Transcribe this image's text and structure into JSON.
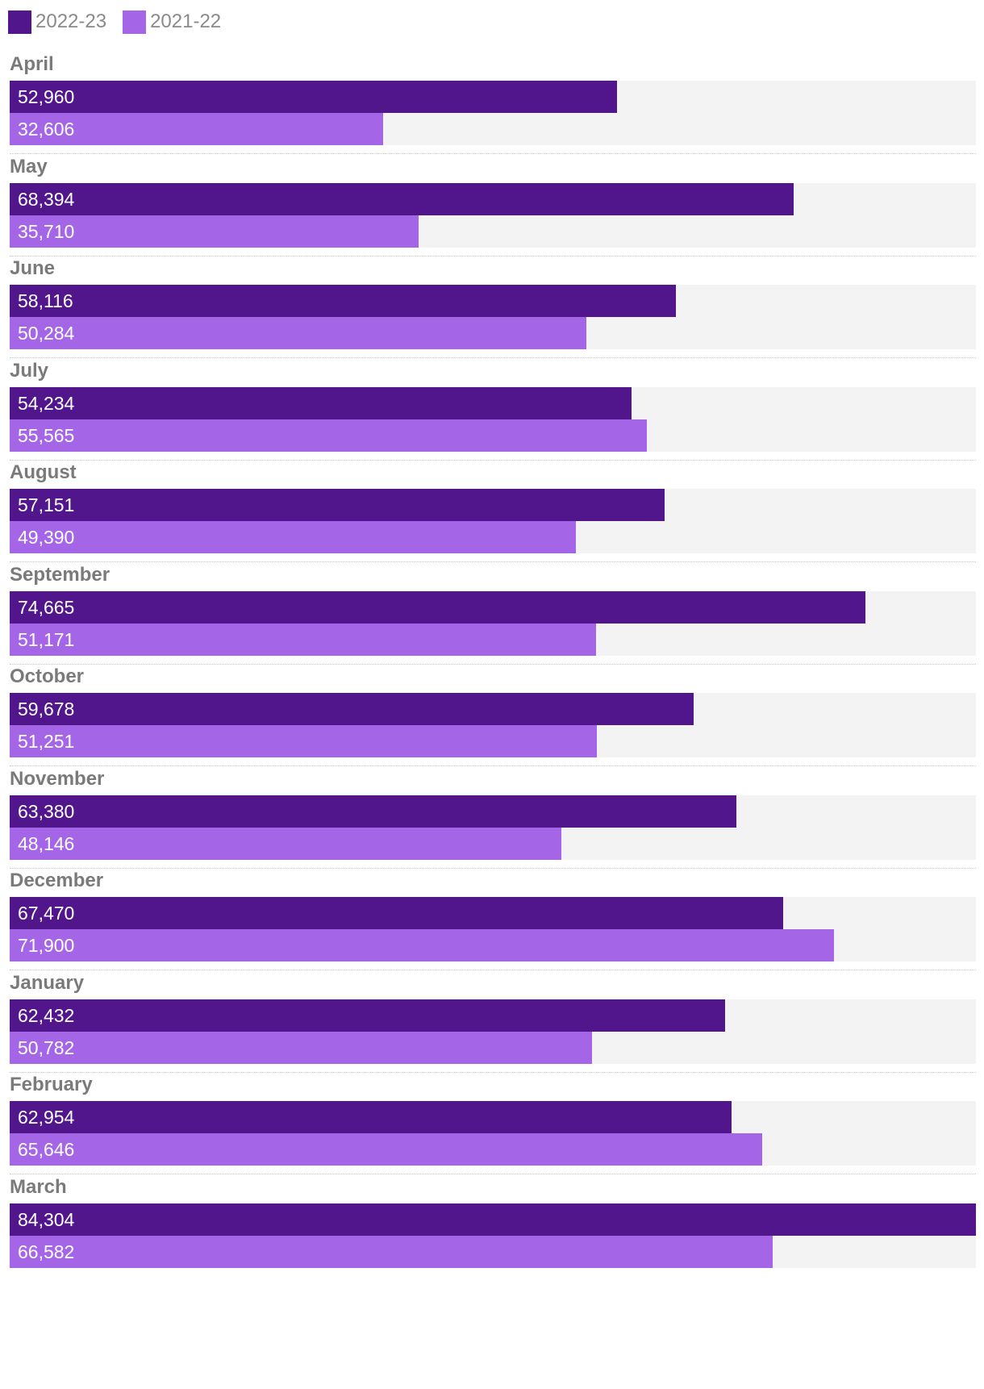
{
  "colors": {
    "series_a": "#52168c",
    "series_b": "#a466e6",
    "track": "#f3f3f3",
    "label": "#7a7a7a"
  },
  "legend": [
    {
      "label": "2022-23",
      "color": "#52168c"
    },
    {
      "label": "2021-22",
      "color": "#a466e6"
    }
  ],
  "chart_data": {
    "type": "bar",
    "orientation": "horizontal",
    "categories": [
      "April",
      "May",
      "June",
      "July",
      "August",
      "September",
      "October",
      "November",
      "December",
      "January",
      "February",
      "March"
    ],
    "series": [
      {
        "name": "2022-23",
        "values": [
          52960,
          68394,
          58116,
          54234,
          57151,
          74665,
          59678,
          63380,
          67470,
          62432,
          62954,
          84304
        ],
        "labels": [
          "52,960",
          "68,394",
          "58,116",
          "54,234",
          "57,151",
          "74,665",
          "59,678",
          "63,380",
          "67,470",
          "62,432",
          "62,954",
          "84,304"
        ]
      },
      {
        "name": "2021-22",
        "values": [
          32606,
          35710,
          50284,
          55565,
          49390,
          51171,
          51251,
          48146,
          71900,
          50782,
          65646,
          66582
        ],
        "labels": [
          "32,606",
          "35,710",
          "50,284",
          "55,565",
          "49,390",
          "51,171",
          "51,251",
          "48,146",
          "71,900",
          "50,782",
          "65,646",
          "66,582"
        ]
      }
    ],
    "xlim": [
      0,
      84304
    ],
    "grid": false,
    "legend_position": "top-left"
  }
}
